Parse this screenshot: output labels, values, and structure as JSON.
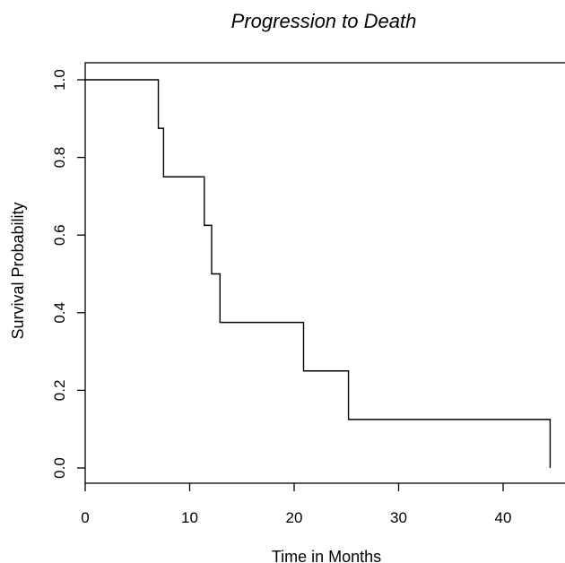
{
  "chart_data": {
    "type": "line",
    "subtype": "step",
    "title": "Progression to Death",
    "xlabel": "Time in Months",
    "ylabel": "Survival Probability",
    "xlim": [
      0,
      45.7
    ],
    "ylim": [
      0,
      1.0
    ],
    "xticks": [
      0,
      10,
      20,
      30,
      40
    ],
    "yticks": [
      0.0,
      0.2,
      0.4,
      0.6,
      0.8,
      1.0
    ],
    "xtick_labels": [
      "0",
      "10",
      "20",
      "30",
      "40"
    ],
    "ytick_labels": [
      "0.0",
      "0.2",
      "0.4",
      "0.6",
      "0.8",
      "1.0"
    ],
    "grid": false,
    "series": [
      {
        "x": [
          0,
          7.0,
          7.5,
          11.4,
          12.1,
          12.9,
          20.9,
          25.2,
          44.5
        ],
        "y": [
          1.0,
          0.875,
          0.75,
          0.625,
          0.5,
          0.375,
          0.25,
          0.125,
          0.0
        ]
      }
    ]
  }
}
